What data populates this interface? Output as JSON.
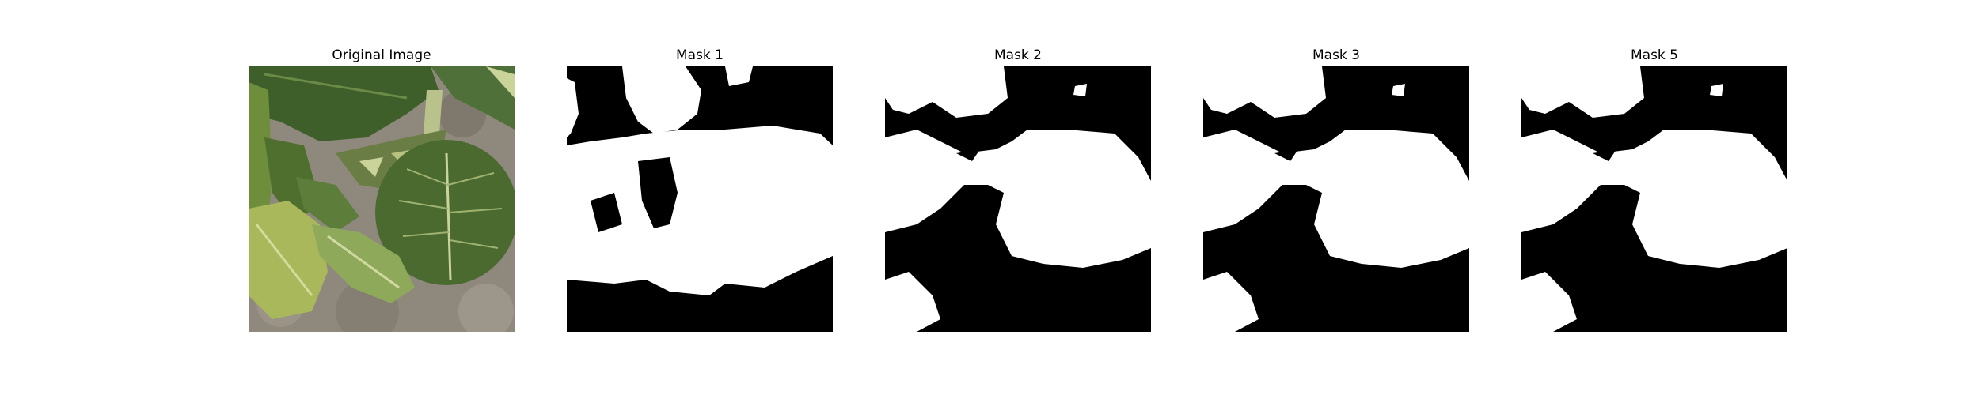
{
  "panels": [
    {
      "title": "Original Image",
      "kind": "photo"
    },
    {
      "title": "Mask 1",
      "kind": "mask1"
    },
    {
      "title": "Mask 2",
      "kind": "mask"
    },
    {
      "title": "Mask 3",
      "kind": "mask"
    },
    {
      "title": "Mask 5",
      "kind": "mask"
    }
  ],
  "colors": {
    "mask_background": "#000000",
    "mask_foreground": "#ffffff",
    "soil": "#8f887c",
    "leaf_dark": "#3f5f2a",
    "leaf_mid": "#5d7d3a",
    "leaf_light": "#a9b85a",
    "leaf_vein": "#c9d39a"
  }
}
